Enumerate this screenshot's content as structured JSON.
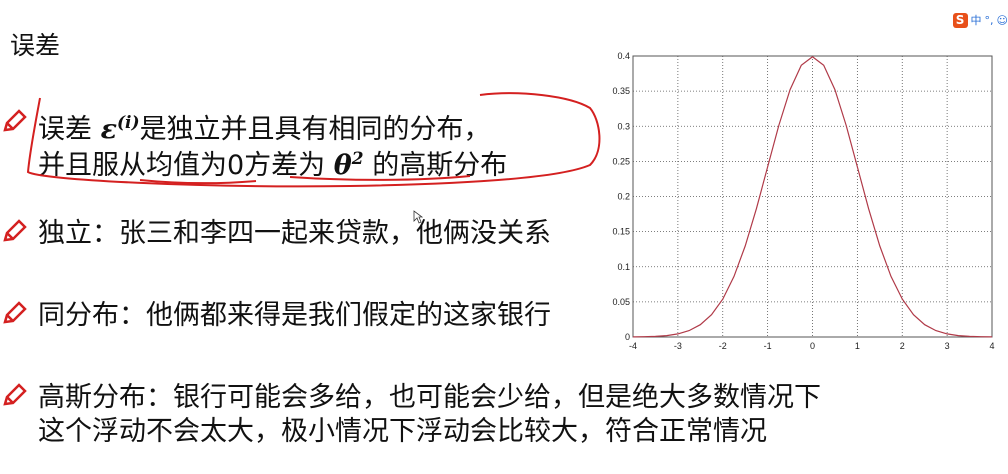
{
  "slide": {
    "title": "误差",
    "bullets": [
      {
        "pre": "误差 ",
        "math": "ε",
        "sup": "(i)",
        "post": "是独立并且具有相同的分布，",
        "line2_pre": "并且服从均值为0方差为 ",
        "line2_math": "θ",
        "line2_sup": "2",
        "line2_post": " 的高斯分布"
      },
      {
        "text": "独立：张三和李四一起来贷款，他俩没关系"
      },
      {
        "text": "同分布：他俩都来得是我们假定的这家银行"
      },
      {
        "text": "高斯分布：银行可能会多给，也可能会少给，但是绝大多数情况下",
        "text2": "这个浮动不会太大，极小情况下浮动会比较大，符合正常情况"
      }
    ],
    "bullet_icon": "pencil-icon",
    "annotation_color": "#d42020"
  },
  "ime_toolbar": {
    "logo": "S",
    "label": "中",
    "punct": "°,",
    "icon": "smiley-icon"
  },
  "chart_data": {
    "type": "line",
    "title": "",
    "xlabel": "",
    "ylabel": "",
    "xlim": [
      -4,
      4
    ],
    "ylim": [
      0,
      0.4
    ],
    "grid": true,
    "xticks": [
      "-4",
      "-3",
      "-2",
      "-1",
      "0",
      "1",
      "2",
      "3",
      "4"
    ],
    "yticks": [
      "0",
      "0.05",
      "0.1",
      "0.15",
      "0.2",
      "0.25",
      "0.3",
      "0.35",
      "0.4"
    ],
    "line_color": "#b03a48",
    "x": [
      -4,
      -3.75,
      -3.5,
      -3.25,
      -3,
      -2.75,
      -2.5,
      -2.25,
      -2,
      -1.75,
      -1.5,
      -1.25,
      -1,
      -0.75,
      -0.5,
      -0.25,
      0,
      0.25,
      0.5,
      0.75,
      1,
      1.25,
      1.5,
      1.75,
      2,
      2.25,
      2.5,
      2.75,
      3,
      3.25,
      3.5,
      3.75,
      4
    ],
    "y": [
      0.0001,
      0.0004,
      0.0009,
      0.002,
      0.0044,
      0.0091,
      0.0175,
      0.0317,
      0.054,
      0.0863,
      0.1295,
      0.1826,
      0.242,
      0.3011,
      0.3521,
      0.3867,
      0.3989,
      0.3867,
      0.3521,
      0.3011,
      0.242,
      0.1826,
      0.1295,
      0.0863,
      0.054,
      0.0317,
      0.0175,
      0.0091,
      0.0044,
      0.002,
      0.0009,
      0.0004,
      0.0001
    ]
  }
}
